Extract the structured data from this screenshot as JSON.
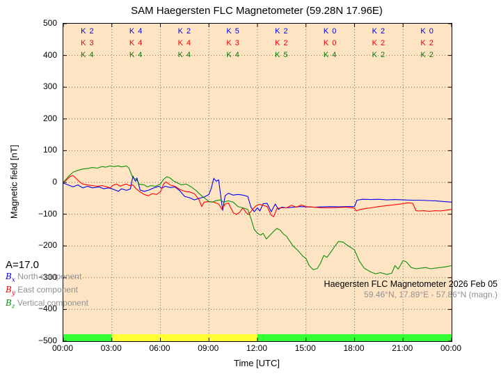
{
  "title": "SAM Haegersten FLC Magnetometer (59.28N 17.96E)",
  "axes": {
    "ylabel": "Magnetic field [nT]",
    "xlabel": "Time [UTC]"
  },
  "annotation": {
    "a_index": "A=17.0"
  },
  "legend": {
    "items": [
      {
        "symbol": "B",
        "sub": "x",
        "label": "North component",
        "color": "#0000dd"
      },
      {
        "symbol": "B",
        "sub": "y",
        "label": "East component",
        "color": "#ee0000"
      },
      {
        "symbol": "B",
        "sub": "z",
        "label": "Vertical component",
        "color": "#0a8f0a"
      }
    ]
  },
  "station_info": {
    "line1": "Haegersten FLC Magnetometer 2026 Feb 05",
    "line2": "59.46°N, 17.89°E - 57.86°N (magn.)"
  },
  "k_indices": {
    "prefix": "K",
    "rows": [
      {
        "component": "Bx",
        "color": "#0000dd",
        "values": [
          2,
          4,
          2,
          5,
          2,
          0,
          2,
          0
        ]
      },
      {
        "component": "By",
        "color": "#ee0000",
        "values": [
          3,
          4,
          4,
          3,
          2,
          0,
          2,
          2
        ]
      },
      {
        "component": "Bz",
        "color": "#007700",
        "values": [
          4,
          4,
          4,
          4,
          5,
          4,
          2,
          2
        ]
      }
    ]
  },
  "colors": {
    "plot_bg": "#ffe4c4",
    "grid": "#666666",
    "bar_green": "#33ff33",
    "bar_yellow": "#ffff33",
    "muted_text": "#909090"
  },
  "chart_data": {
    "type": "line",
    "title": "SAM Haegersten FLC Magnetometer (59.28N 17.96E)",
    "xlabel": "Time [UTC]",
    "ylabel": "Magnetic field [nT]",
    "xlim": [
      0,
      24
    ],
    "ylim": [
      -500,
      500
    ],
    "grid": "dotted, vertical every 3 h, horizontal every 100 nT",
    "legend_position": "lower left",
    "xticks": [
      [
        0,
        "00:00"
      ],
      [
        3,
        "03:00"
      ],
      [
        6,
        "06:00"
      ],
      [
        9,
        "09:00"
      ],
      [
        12,
        "12:00"
      ],
      [
        15,
        "15:00"
      ],
      [
        18,
        "18:00"
      ],
      [
        21,
        "21:00"
      ],
      [
        24,
        "00:00"
      ]
    ],
    "yticks": [
      [
        500,
        "500"
      ],
      [
        400,
        "400"
      ],
      [
        300,
        "300"
      ],
      [
        200,
        "200"
      ],
      [
        100,
        "100"
      ],
      [
        0,
        "0"
      ],
      [
        -100,
        "−100"
      ],
      [
        -200,
        "−200"
      ],
      [
        -300,
        "−300"
      ],
      [
        -400,
        "−400"
      ],
      [
        -500,
        "−500"
      ]
    ],
    "activity_bar": {
      "segments": [
        {
          "from": 0,
          "to": 3,
          "color": "#33ff33"
        },
        {
          "from": 3,
          "to": 12,
          "color": "#ffff33"
        },
        {
          "from": 12,
          "to": 24,
          "color": "#33ff33"
        }
      ]
    },
    "series": [
      {
        "name": "Bx North component",
        "color": "#0000ee",
        "points": [
          [
            0,
            -2
          ],
          [
            0.3,
            -8
          ],
          [
            0.6,
            -14
          ],
          [
            0.9,
            -8
          ],
          [
            1.2,
            -17
          ],
          [
            1.5,
            -12
          ],
          [
            1.8,
            -17
          ],
          [
            2.2,
            -14
          ],
          [
            2.5,
            -20
          ],
          [
            2.8,
            -17
          ],
          [
            3.1,
            -22
          ],
          [
            3.4,
            -28
          ],
          [
            3.6,
            -20
          ],
          [
            3.9,
            -25
          ],
          [
            4.15,
            -20
          ],
          [
            4.3,
            20
          ],
          [
            4.45,
            4
          ],
          [
            4.55,
            14
          ],
          [
            4.75,
            -24
          ],
          [
            5,
            -28
          ],
          [
            5.3,
            -24
          ],
          [
            5.6,
            -17
          ],
          [
            5.9,
            -12
          ],
          [
            6.1,
            -18
          ],
          [
            6.3,
            -12
          ],
          [
            6.6,
            -16
          ],
          [
            6.9,
            -14
          ],
          [
            7.2,
            -26
          ],
          [
            7.5,
            -44
          ],
          [
            7.8,
            -48
          ],
          [
            8.1,
            -55
          ],
          [
            8.4,
            -50
          ],
          [
            8.7,
            -46
          ],
          [
            9,
            -38
          ],
          [
            9.15,
            -18
          ],
          [
            9.3,
            13
          ],
          [
            9.45,
            4
          ],
          [
            9.6,
            8
          ],
          [
            9.75,
            -50
          ],
          [
            9.85,
            -88
          ],
          [
            10,
            -42
          ],
          [
            10.2,
            -34
          ],
          [
            10.5,
            -40
          ],
          [
            10.8,
            -38
          ],
          [
            11.1,
            -40
          ],
          [
            11.4,
            -44
          ],
          [
            11.6,
            -78
          ],
          [
            11.8,
            -92
          ],
          [
            12,
            -80
          ],
          [
            12.15,
            -90
          ],
          [
            12.35,
            -67
          ],
          [
            12.6,
            -66
          ],
          [
            12.85,
            -92
          ],
          [
            13.1,
            -68
          ],
          [
            13.3,
            -85
          ],
          [
            13.5,
            -78
          ],
          [
            13.8,
            -80
          ],
          [
            14.2,
            -78
          ],
          [
            14.6,
            -76
          ],
          [
            15,
            -77
          ],
          [
            15.5,
            -78
          ],
          [
            16,
            -77
          ],
          [
            16.5,
            -76
          ],
          [
            17,
            -77
          ],
          [
            17.5,
            -76
          ],
          [
            18,
            -76
          ],
          [
            18.15,
            -56
          ],
          [
            18.5,
            -53
          ],
          [
            19,
            -54
          ],
          [
            19.5,
            -53
          ],
          [
            20,
            -55
          ],
          [
            20.5,
            -54
          ],
          [
            21,
            -55
          ],
          [
            21.5,
            -56
          ],
          [
            22,
            -56
          ],
          [
            22.5,
            -57
          ],
          [
            23,
            -58
          ],
          [
            23.5,
            -60
          ],
          [
            24,
            -62
          ]
        ]
      },
      {
        "name": "By East component",
        "color": "#ff0000",
        "points": [
          [
            0,
            0
          ],
          [
            0.2,
            8
          ],
          [
            0.4,
            18
          ],
          [
            0.6,
            22
          ],
          [
            0.8,
            12
          ],
          [
            1,
            2
          ],
          [
            1.2,
            -5
          ],
          [
            1.5,
            -8
          ],
          [
            1.8,
            -10
          ],
          [
            2.1,
            -12
          ],
          [
            2.4,
            -10
          ],
          [
            2.7,
            -14
          ],
          [
            2.9,
            -17
          ],
          [
            3.1,
            -8
          ],
          [
            3.3,
            -5
          ],
          [
            3.5,
            -12
          ],
          [
            3.7,
            -8
          ],
          [
            3.9,
            -5
          ],
          [
            4.1,
            -10
          ],
          [
            4.3,
            -8
          ],
          [
            4.5,
            -20
          ],
          [
            4.75,
            -30
          ],
          [
            5,
            -38
          ],
          [
            5.25,
            -42
          ],
          [
            5.5,
            -35
          ],
          [
            5.75,
            -38
          ],
          [
            6,
            -30
          ],
          [
            6.2,
            -5
          ],
          [
            6.35,
            2
          ],
          [
            6.6,
            -8
          ],
          [
            6.9,
            -12
          ],
          [
            7.2,
            -22
          ],
          [
            7.5,
            -28
          ],
          [
            7.8,
            -30
          ],
          [
            8.1,
            -35
          ],
          [
            8.4,
            -55
          ],
          [
            8.55,
            -76
          ],
          [
            8.7,
            -62
          ],
          [
            9,
            -60
          ],
          [
            9.3,
            -62
          ],
          [
            9.6,
            -68
          ],
          [
            9.8,
            -84
          ],
          [
            10,
            -68
          ],
          [
            10.2,
            -65
          ],
          [
            10.5,
            -95
          ],
          [
            10.7,
            -101
          ],
          [
            10.9,
            -94
          ],
          [
            11.1,
            -80
          ],
          [
            11.3,
            -95
          ],
          [
            11.45,
            -101
          ],
          [
            11.7,
            -85
          ],
          [
            11.9,
            -74
          ],
          [
            12.1,
            -69
          ],
          [
            12.35,
            -72
          ],
          [
            12.6,
            -76
          ],
          [
            12.85,
            -103
          ],
          [
            13,
            -108
          ],
          [
            13.2,
            -82
          ],
          [
            13.5,
            -80
          ],
          [
            13.8,
            -80
          ],
          [
            14.1,
            -72
          ],
          [
            14.4,
            -78
          ],
          [
            14.7,
            -71
          ],
          [
            15,
            -76
          ],
          [
            15.5,
            -78
          ],
          [
            16,
            -80
          ],
          [
            16.5,
            -80
          ],
          [
            17,
            -79
          ],
          [
            17.5,
            -78
          ],
          [
            18,
            -81
          ],
          [
            18.1,
            -90
          ],
          [
            18.35,
            -85
          ],
          [
            18.7,
            -82
          ],
          [
            19,
            -80
          ],
          [
            19.5,
            -76
          ],
          [
            20,
            -73
          ],
          [
            20.5,
            -70
          ],
          [
            21,
            -67
          ],
          [
            21.3,
            -64
          ],
          [
            21.6,
            -66
          ],
          [
            21.8,
            -89
          ],
          [
            22,
            -90
          ],
          [
            22.3,
            -89
          ],
          [
            22.6,
            -91
          ],
          [
            23,
            -89
          ],
          [
            23.3,
            -90
          ],
          [
            23.6,
            -88
          ],
          [
            24,
            -85
          ]
        ]
      },
      {
        "name": "Bz Vertical component",
        "color": "#0a8f0a",
        "points": [
          [
            0,
            0
          ],
          [
            0.3,
            18
          ],
          [
            0.6,
            32
          ],
          [
            0.9,
            38
          ],
          [
            1.2,
            42
          ],
          [
            1.5,
            44
          ],
          [
            1.8,
            47
          ],
          [
            2.1,
            45
          ],
          [
            2.4,
            50
          ],
          [
            2.6,
            48
          ],
          [
            2.9,
            52
          ],
          [
            3.1,
            50
          ],
          [
            3.4,
            52
          ],
          [
            3.6,
            49
          ],
          [
            3.9,
            52
          ],
          [
            4.05,
            46
          ],
          [
            4.3,
            14
          ],
          [
            4.5,
            10
          ],
          [
            4.7,
            -6
          ],
          [
            5,
            -8
          ],
          [
            5.2,
            -14
          ],
          [
            5.4,
            -10
          ],
          [
            5.7,
            -12
          ],
          [
            6,
            -5
          ],
          [
            6.2,
            10
          ],
          [
            6.4,
            18
          ],
          [
            6.6,
            14
          ],
          [
            6.8,
            5
          ],
          [
            7,
            0
          ],
          [
            7.3,
            -8
          ],
          [
            7.6,
            -5
          ],
          [
            7.9,
            -14
          ],
          [
            8.2,
            -25
          ],
          [
            8.5,
            -40
          ],
          [
            8.8,
            -52
          ],
          [
            9,
            -60
          ],
          [
            9.2,
            -62
          ],
          [
            9.4,
            -58
          ],
          [
            9.7,
            -55
          ],
          [
            9.9,
            -62
          ],
          [
            10.2,
            -58
          ],
          [
            10.5,
            -62
          ],
          [
            10.8,
            -76
          ],
          [
            11.1,
            -80
          ],
          [
            11.4,
            -85
          ],
          [
            11.6,
            -114
          ],
          [
            11.8,
            -148
          ],
          [
            12,
            -160
          ],
          [
            12.2,
            -166
          ],
          [
            12.35,
            -160
          ],
          [
            12.55,
            -178
          ],
          [
            12.8,
            -165
          ],
          [
            13,
            -154
          ],
          [
            13.2,
            -145
          ],
          [
            13.4,
            -150
          ],
          [
            13.6,
            -162
          ],
          [
            13.8,
            -170
          ],
          [
            14,
            -185
          ],
          [
            14.2,
            -200
          ],
          [
            14.5,
            -214
          ],
          [
            14.8,
            -232
          ],
          [
            15,
            -240
          ],
          [
            15.2,
            -262
          ],
          [
            15.45,
            -275
          ],
          [
            15.7,
            -271
          ],
          [
            15.9,
            -254
          ],
          [
            16.1,
            -230
          ],
          [
            16.3,
            -236
          ],
          [
            16.5,
            -222
          ],
          [
            16.8,
            -200
          ],
          [
            17,
            -186
          ],
          [
            17.3,
            -188
          ],
          [
            17.5,
            -196
          ],
          [
            17.8,
            -206
          ],
          [
            18,
            -213
          ],
          [
            18.3,
            -248
          ],
          [
            18.6,
            -270
          ],
          [
            19,
            -282
          ],
          [
            19.3,
            -288
          ],
          [
            19.6,
            -284
          ],
          [
            20,
            -290
          ],
          [
            20.3,
            -286
          ],
          [
            20.5,
            -262
          ],
          [
            20.7,
            -273
          ],
          [
            21,
            -246
          ],
          [
            21.2,
            -250
          ],
          [
            21.5,
            -268
          ],
          [
            21.8,
            -272
          ],
          [
            22.1,
            -270
          ],
          [
            22.4,
            -268
          ],
          [
            22.7,
            -272
          ],
          [
            23,
            -270
          ],
          [
            23.3,
            -268
          ],
          [
            23.6,
            -266
          ],
          [
            24,
            -262
          ]
        ]
      }
    ]
  }
}
